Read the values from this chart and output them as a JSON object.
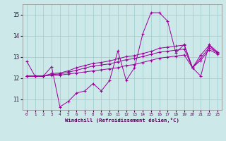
{
  "xlabel": "Windchill (Refroidissement éolien,°C)",
  "background_color": "#cce8e8",
  "grid_color": "#99cccc",
  "line_color": "#990099",
  "xmin": -0.5,
  "xmax": 23.5,
  "ymin": 10.5,
  "ymax": 15.5,
  "yticks": [
    11,
    12,
    13,
    14,
    15
  ],
  "hours": [
    0,
    1,
    2,
    3,
    4,
    5,
    6,
    7,
    8,
    9,
    10,
    11,
    12,
    13,
    14,
    15,
    16,
    17,
    18,
    19,
    20,
    21,
    22,
    23
  ],
  "series1": [
    12.8,
    12.1,
    12.1,
    12.55,
    10.65,
    10.9,
    11.3,
    11.4,
    11.75,
    11.4,
    11.9,
    13.3,
    11.9,
    12.5,
    14.1,
    15.1,
    15.1,
    14.7,
    13.2,
    13.6,
    12.5,
    12.1,
    13.6,
    13.25
  ],
  "series2": [
    12.1,
    12.1,
    12.1,
    12.15,
    12.15,
    12.2,
    12.25,
    12.3,
    12.35,
    12.4,
    12.45,
    12.5,
    12.6,
    12.65,
    12.75,
    12.85,
    12.95,
    13.0,
    13.05,
    13.1,
    12.5,
    12.85,
    13.35,
    13.15
  ],
  "series3": [
    12.1,
    12.1,
    12.1,
    12.18,
    12.2,
    12.28,
    12.38,
    12.48,
    12.58,
    12.63,
    12.68,
    12.78,
    12.88,
    12.93,
    13.03,
    13.13,
    13.23,
    13.28,
    13.33,
    13.38,
    12.5,
    12.95,
    13.45,
    13.2
  ],
  "series4": [
    12.1,
    12.1,
    12.1,
    12.22,
    12.25,
    12.35,
    12.5,
    12.6,
    12.7,
    12.75,
    12.82,
    12.92,
    13.02,
    13.07,
    13.17,
    13.27,
    13.42,
    13.47,
    13.52,
    13.57,
    12.5,
    13.1,
    13.55,
    13.2
  ]
}
